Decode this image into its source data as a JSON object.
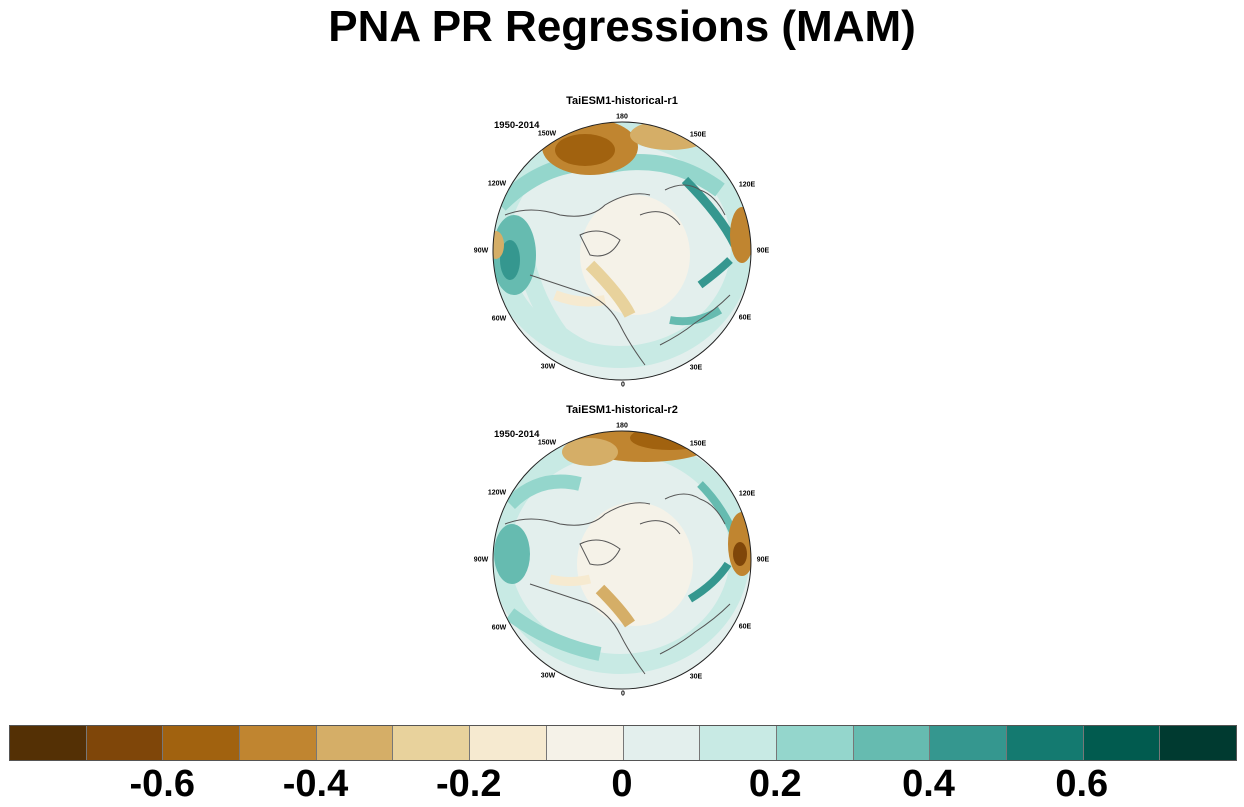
{
  "title": "PNA PR Regressions (MAM)",
  "panels": [
    {
      "model_label": "TaiESM1-historical-r1",
      "period": "1950-2014",
      "lon_labels": [
        "180",
        "150E",
        "120E",
        "90E",
        "60E",
        "30E",
        "0",
        "30W",
        "60W",
        "90W",
        "120W",
        "150W"
      ]
    },
    {
      "model_label": "TaiESM1-historical-r2",
      "period": "1950-2014",
      "lon_labels": [
        "180",
        "150E",
        "120E",
        "90E",
        "60E",
        "30E",
        "0",
        "30W",
        "60W",
        "90W",
        "120W",
        "150W"
      ]
    }
  ],
  "colorbar": {
    "colors": [
      "#543005",
      "#7f4609",
      "#a1620f",
      "#c08530",
      "#d5ae67",
      "#e8d29c",
      "#f6ead0",
      "#f5f2e8",
      "#e3efed",
      "#c8eae4",
      "#94d6cc",
      "#66bbb0",
      "#35978f",
      "#147a70",
      "#015b4f",
      "#003a30"
    ],
    "tick_labels": [
      "-0.6",
      "-0.4",
      "-0.2",
      "0",
      "0.2",
      "0.4",
      "0.6"
    ]
  }
}
